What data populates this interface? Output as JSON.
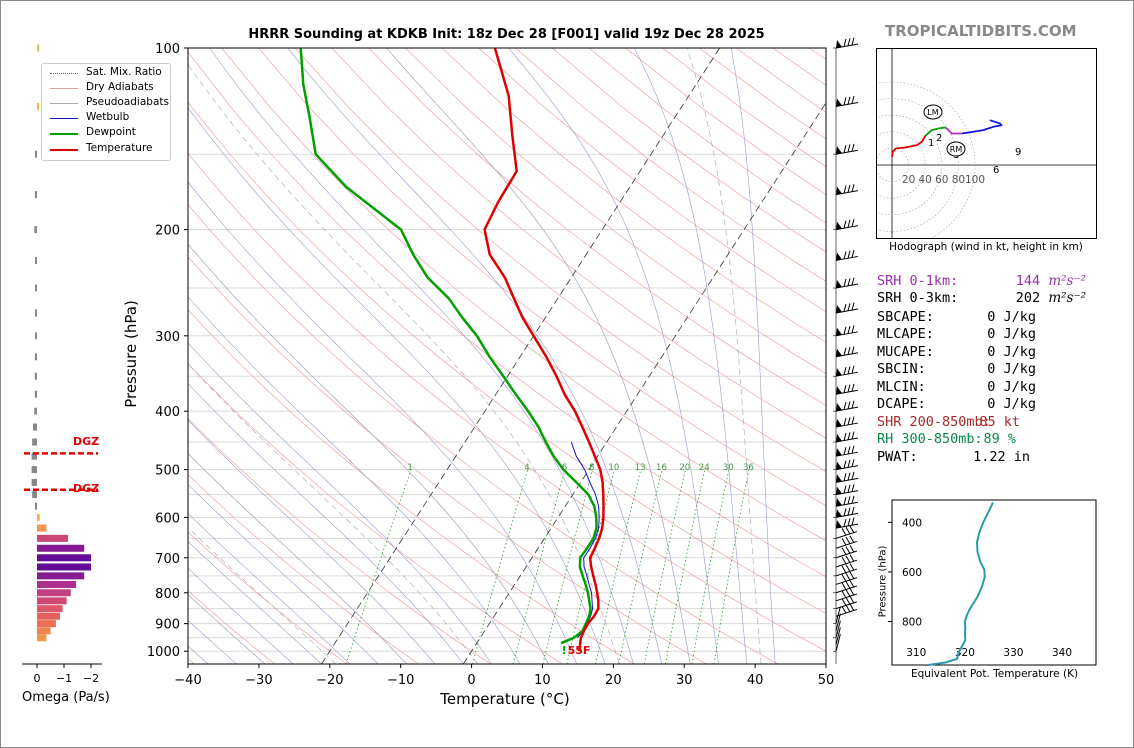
{
  "site_name": "TROPICALTIDBITS.COM",
  "chart_data": [
    {
      "type": "line",
      "name": "skew-t",
      "title": "HRRR Sounding at KDKB Init: 18z Dec 28 [F001] valid 19z Dec 28 2025",
      "xlabel": "Temperature (°C)",
      "ylabel": "Pressure (hPa)",
      "xlim": [
        -40,
        50
      ],
      "ylim": [
        1050,
        100
      ],
      "y_scale": "log",
      "x_ticks": [
        "−40",
        "−30",
        "−20",
        "−10",
        "0",
        "10",
        "20",
        "30",
        "40",
        "50"
      ],
      "y_ticks": [
        "100",
        "200",
        "300",
        "400",
        "500",
        "600",
        "700",
        "800",
        "900",
        "1000"
      ],
      "legend": [
        "Sat. Mix. Ratio",
        "Dry Adiabats",
        "Pseudoadiabats",
        "Wetbulb",
        "Dewpoint",
        "Temperature"
      ],
      "mixing_ratio_labels": [
        "1",
        "4",
        "6",
        "8",
        "10",
        "13",
        "16",
        "20",
        "24",
        "30",
        "36"
      ],
      "surface_temp_label": "55F",
      "series": [
        {
          "name": "Temperature",
          "color": "#e00000",
          "points": [
            [
              1000,
              15.2
            ],
            [
              990,
              15.0
            ],
            [
              970,
              14.6
            ],
            [
              950,
              14.2
            ],
            [
              925,
              14.0
            ],
            [
              900,
              13.9
            ],
            [
              875,
              14.1
            ],
            [
              850,
              14.0
            ],
            [
              825,
              13.3
            ],
            [
              800,
              12.4
            ],
            [
              775,
              11.4
            ],
            [
              750,
              10.3
            ],
            [
              725,
              9.2
            ],
            [
              700,
              8.2
            ],
            [
              675,
              8.0
            ],
            [
              650,
              7.7
            ],
            [
              625,
              7.2
            ],
            [
              600,
              6.4
            ],
            [
              575,
              5.4
            ],
            [
              550,
              4.3
            ],
            [
              525,
              3.1
            ],
            [
              500,
              1.6
            ],
            [
              475,
              -0.4
            ],
            [
              450,
              -2.5
            ],
            [
              425,
              -4.8
            ],
            [
              400,
              -7.3
            ],
            [
              375,
              -10.3
            ],
            [
              350,
              -13.1
            ],
            [
              325,
              -16.3
            ],
            [
              300,
              -20.0
            ],
            [
              280,
              -23.2
            ],
            [
              260,
              -26.2
            ],
            [
              240,
              -29.4
            ],
            [
              220,
              -33.6
            ],
            [
              200,
              -36.6
            ],
            [
              180,
              -37.2
            ],
            [
              160,
              -37.4
            ],
            [
              140,
              -41.2
            ],
            [
              120,
              -45.4
            ],
            [
              100,
              -51.7
            ]
          ]
        },
        {
          "name": "Dewpoint",
          "color": "#00a000",
          "points": [
            [
              970,
              11.9
            ],
            [
              950,
              13.2
            ],
            [
              925,
              13.8
            ],
            [
              900,
              13.6
            ],
            [
              875,
              13.4
            ],
            [
              850,
              12.9
            ],
            [
              825,
              12.0
            ],
            [
              800,
              11.1
            ],
            [
              775,
              10.0
            ],
            [
              750,
              8.8
            ],
            [
              725,
              7.6
            ],
            [
              700,
              6.8
            ],
            [
              675,
              6.9
            ],
            [
              650,
              6.9
            ],
            [
              625,
              6.4
            ],
            [
              600,
              5.4
            ],
            [
              575,
              4.1
            ],
            [
              550,
              2.2
            ],
            [
              525,
              -0.6
            ],
            [
              500,
              -3.6
            ],
            [
              475,
              -6.2
            ],
            [
              450,
              -8.6
            ],
            [
              425,
              -11.0
            ],
            [
              400,
              -13.9
            ],
            [
              375,
              -17.2
            ],
            [
              350,
              -20.6
            ],
            [
              325,
              -24.3
            ],
            [
              300,
              -28.0
            ],
            [
              280,
              -31.7
            ],
            [
              260,
              -35.4
            ],
            [
              240,
              -40.3
            ],
            [
              220,
              -44.4
            ],
            [
              200,
              -48.4
            ],
            [
              170,
              -60.0
            ],
            [
              150,
              -67.3
            ],
            [
              130,
              -71.6
            ],
            [
              115,
              -75.4
            ],
            [
              100,
              -79.1
            ]
          ]
        },
        {
          "name": "Wetbulb",
          "color": "#1010c0",
          "points": [
            [
              950,
              13.7
            ],
            [
              925,
              13.9
            ],
            [
              900,
              13.7
            ],
            [
              875,
              13.6
            ],
            [
              850,
              13.2
            ],
            [
              825,
              12.4
            ],
            [
              800,
              11.6
            ],
            [
              775,
              10.5
            ],
            [
              750,
              9.4
            ],
            [
              725,
              8.2
            ],
            [
              700,
              7.3
            ],
            [
              675,
              7.3
            ],
            [
              650,
              7.2
            ],
            [
              625,
              6.7
            ],
            [
              600,
              5.8
            ],
            [
              575,
              4.7
            ],
            [
              550,
              3.2
            ],
            [
              525,
              1.3
            ],
            [
              500,
              -0.6
            ],
            [
              475,
              -3.0
            ],
            [
              450,
              -5.0
            ]
          ]
        }
      ],
      "dgz_label": "DGZ"
    },
    {
      "type": "bar",
      "name": "omega",
      "xlabel": "Omega (Pa/s)",
      "x_ticks": [
        "0",
        "−1",
        "−2"
      ],
      "bars": [
        {
          "p": 100,
          "v": -0.05
        },
        {
          "p": 125,
          "v": -0.05
        },
        {
          "p": 150,
          "v": 0.02
        },
        {
          "p": 175,
          "v": 0.08
        },
        {
          "p": 200,
          "v": 0.1
        },
        {
          "p": 225,
          "v": 0.05
        },
        {
          "p": 250,
          "v": 0.02
        },
        {
          "p": 275,
          "v": 0.03
        },
        {
          "p": 300,
          "v": 0.05
        },
        {
          "p": 325,
          "v": 0.08
        },
        {
          "p": 350,
          "v": 0.08
        },
        {
          "p": 375,
          "v": 0.08
        },
        {
          "p": 400,
          "v": 0.1
        },
        {
          "p": 425,
          "v": 0.15
        },
        {
          "p": 450,
          "v": 0.18
        },
        {
          "p": 475,
          "v": 0.2
        },
        {
          "p": 500,
          "v": 0.2
        },
        {
          "p": 525,
          "v": 0.2
        },
        {
          "p": 550,
          "v": 0.18
        },
        {
          "p": 575,
          "v": 0.05
        },
        {
          "p": 600,
          "v": -0.1
        },
        {
          "p": 625,
          "v": -0.35
        },
        {
          "p": 650,
          "v": -1.15
        },
        {
          "p": 675,
          "v": -1.75
        },
        {
          "p": 700,
          "v": -2.0
        },
        {
          "p": 725,
          "v": -2.0
        },
        {
          "p": 750,
          "v": -1.75
        },
        {
          "p": 775,
          "v": -1.45
        },
        {
          "p": 800,
          "v": -1.25
        },
        {
          "p": 825,
          "v": -1.1
        },
        {
          "p": 850,
          "v": -0.95
        },
        {
          "p": 875,
          "v": -0.85
        },
        {
          "p": 900,
          "v": -0.7
        },
        {
          "p": 925,
          "v": -0.5
        },
        {
          "p": 950,
          "v": -0.35
        }
      ],
      "dgz_range": [
        470,
        540
      ]
    },
    {
      "type": "line",
      "name": "hodograph",
      "xlabel": "Hodograph (wind in kt, height in km)",
      "ring_labels": [
        "20",
        "40",
        "60",
        "80",
        "100"
      ],
      "height_labels": [
        "1",
        "2",
        "3",
        "6",
        "9"
      ],
      "storm_motion_labels": [
        "LM",
        "RM"
      ],
      "segments": [
        {
          "color": "#e00000",
          "points": [
            [
              0,
              10
            ],
            [
              1,
              16
            ],
            [
              5,
              20
            ],
            [
              15,
              21
            ],
            [
              30,
              24
            ],
            [
              36,
              28
            ],
            [
              40,
              35
            ]
          ]
        },
        {
          "color": "#00a000",
          "points": [
            [
              40,
              35
            ],
            [
              48,
              42
            ],
            [
              56,
              44
            ],
            [
              62,
              45
            ],
            [
              65,
              45
            ]
          ]
        },
        {
          "color": "#b030b0",
          "points": [
            [
              65,
              45
            ],
            [
              68,
              42
            ],
            [
              72,
              38
            ],
            [
              78,
              38
            ],
            [
              84,
              38
            ]
          ]
        },
        {
          "color": "#1515e0",
          "points": [
            [
              84,
              38
            ],
            [
              98,
              40
            ],
            [
              110,
              42
            ],
            [
              122,
              46
            ],
            [
              132,
              48
            ],
            [
              130,
              50
            ],
            [
              118,
              54
            ]
          ]
        }
      ]
    },
    {
      "type": "line",
      "name": "theta-e",
      "xlabel": "Equivalent Pot. Temperature (K)",
      "ylabel": "Pressure (hPa)",
      "x_ticks": [
        "310",
        "320",
        "330",
        "340"
      ],
      "y_ticks": [
        "400",
        "600",
        "800"
      ],
      "xlim": [
        305,
        347
      ],
      "ylim": [
        975,
        310
      ],
      "color": "#2a9aac",
      "points": [
        [
          975,
          312.5
        ],
        [
          965,
          316
        ],
        [
          950,
          318.4
        ],
        [
          930,
          318.6
        ],
        [
          900,
          319.4
        ],
        [
          875,
          320.1
        ],
        [
          850,
          320.0
        ],
        [
          825,
          320.1
        ],
        [
          800,
          320.0
        ],
        [
          775,
          320.4
        ],
        [
          750,
          321.0
        ],
        [
          700,
          322.6
        ],
        [
          660,
          323.5
        ],
        [
          620,
          324.1
        ],
        [
          590,
          324.0
        ],
        [
          560,
          323.2
        ],
        [
          520,
          322.6
        ],
        [
          480,
          322.5
        ],
        [
          440,
          323.0
        ],
        [
          400,
          323.8
        ],
        [
          360,
          324.8
        ],
        [
          320,
          325.8
        ]
      ]
    }
  ],
  "indices": [
    {
      "label": "SRH 0-1km:",
      "value": "144",
      "unit": "m²s⁻²",
      "color": "#9b2fae"
    },
    {
      "label": "SRH 0-3km:",
      "value": "202",
      "unit": "m²s⁻²",
      "color": "#000000"
    },
    {
      "label": "SBCAPE:",
      "value": "0 J/kg",
      "color": "#000000"
    },
    {
      "label": "MLCAPE:",
      "value": "0 J/kg",
      "color": "#000000"
    },
    {
      "label": "MUCAPE:",
      "value": "0 J/kg",
      "color": "#000000"
    },
    {
      "label": "SBCIN:",
      "value": "0 J/kg",
      "color": "#000000"
    },
    {
      "label": "MLCIN:",
      "value": "0 J/kg",
      "color": "#000000"
    },
    {
      "label": "DCAPE:",
      "value": "0 J/kg",
      "color": "#000000"
    },
    {
      "label": "SHR 200-850mb:",
      "value": "85 kt",
      "color": "#a52a2a"
    },
    {
      "label": "RH 300-850mb:",
      "value": "89 %",
      "color": "#0a8a4a"
    },
    {
      "label": "PWAT:",
      "value": "1.22 in",
      "color": "#000000"
    }
  ]
}
